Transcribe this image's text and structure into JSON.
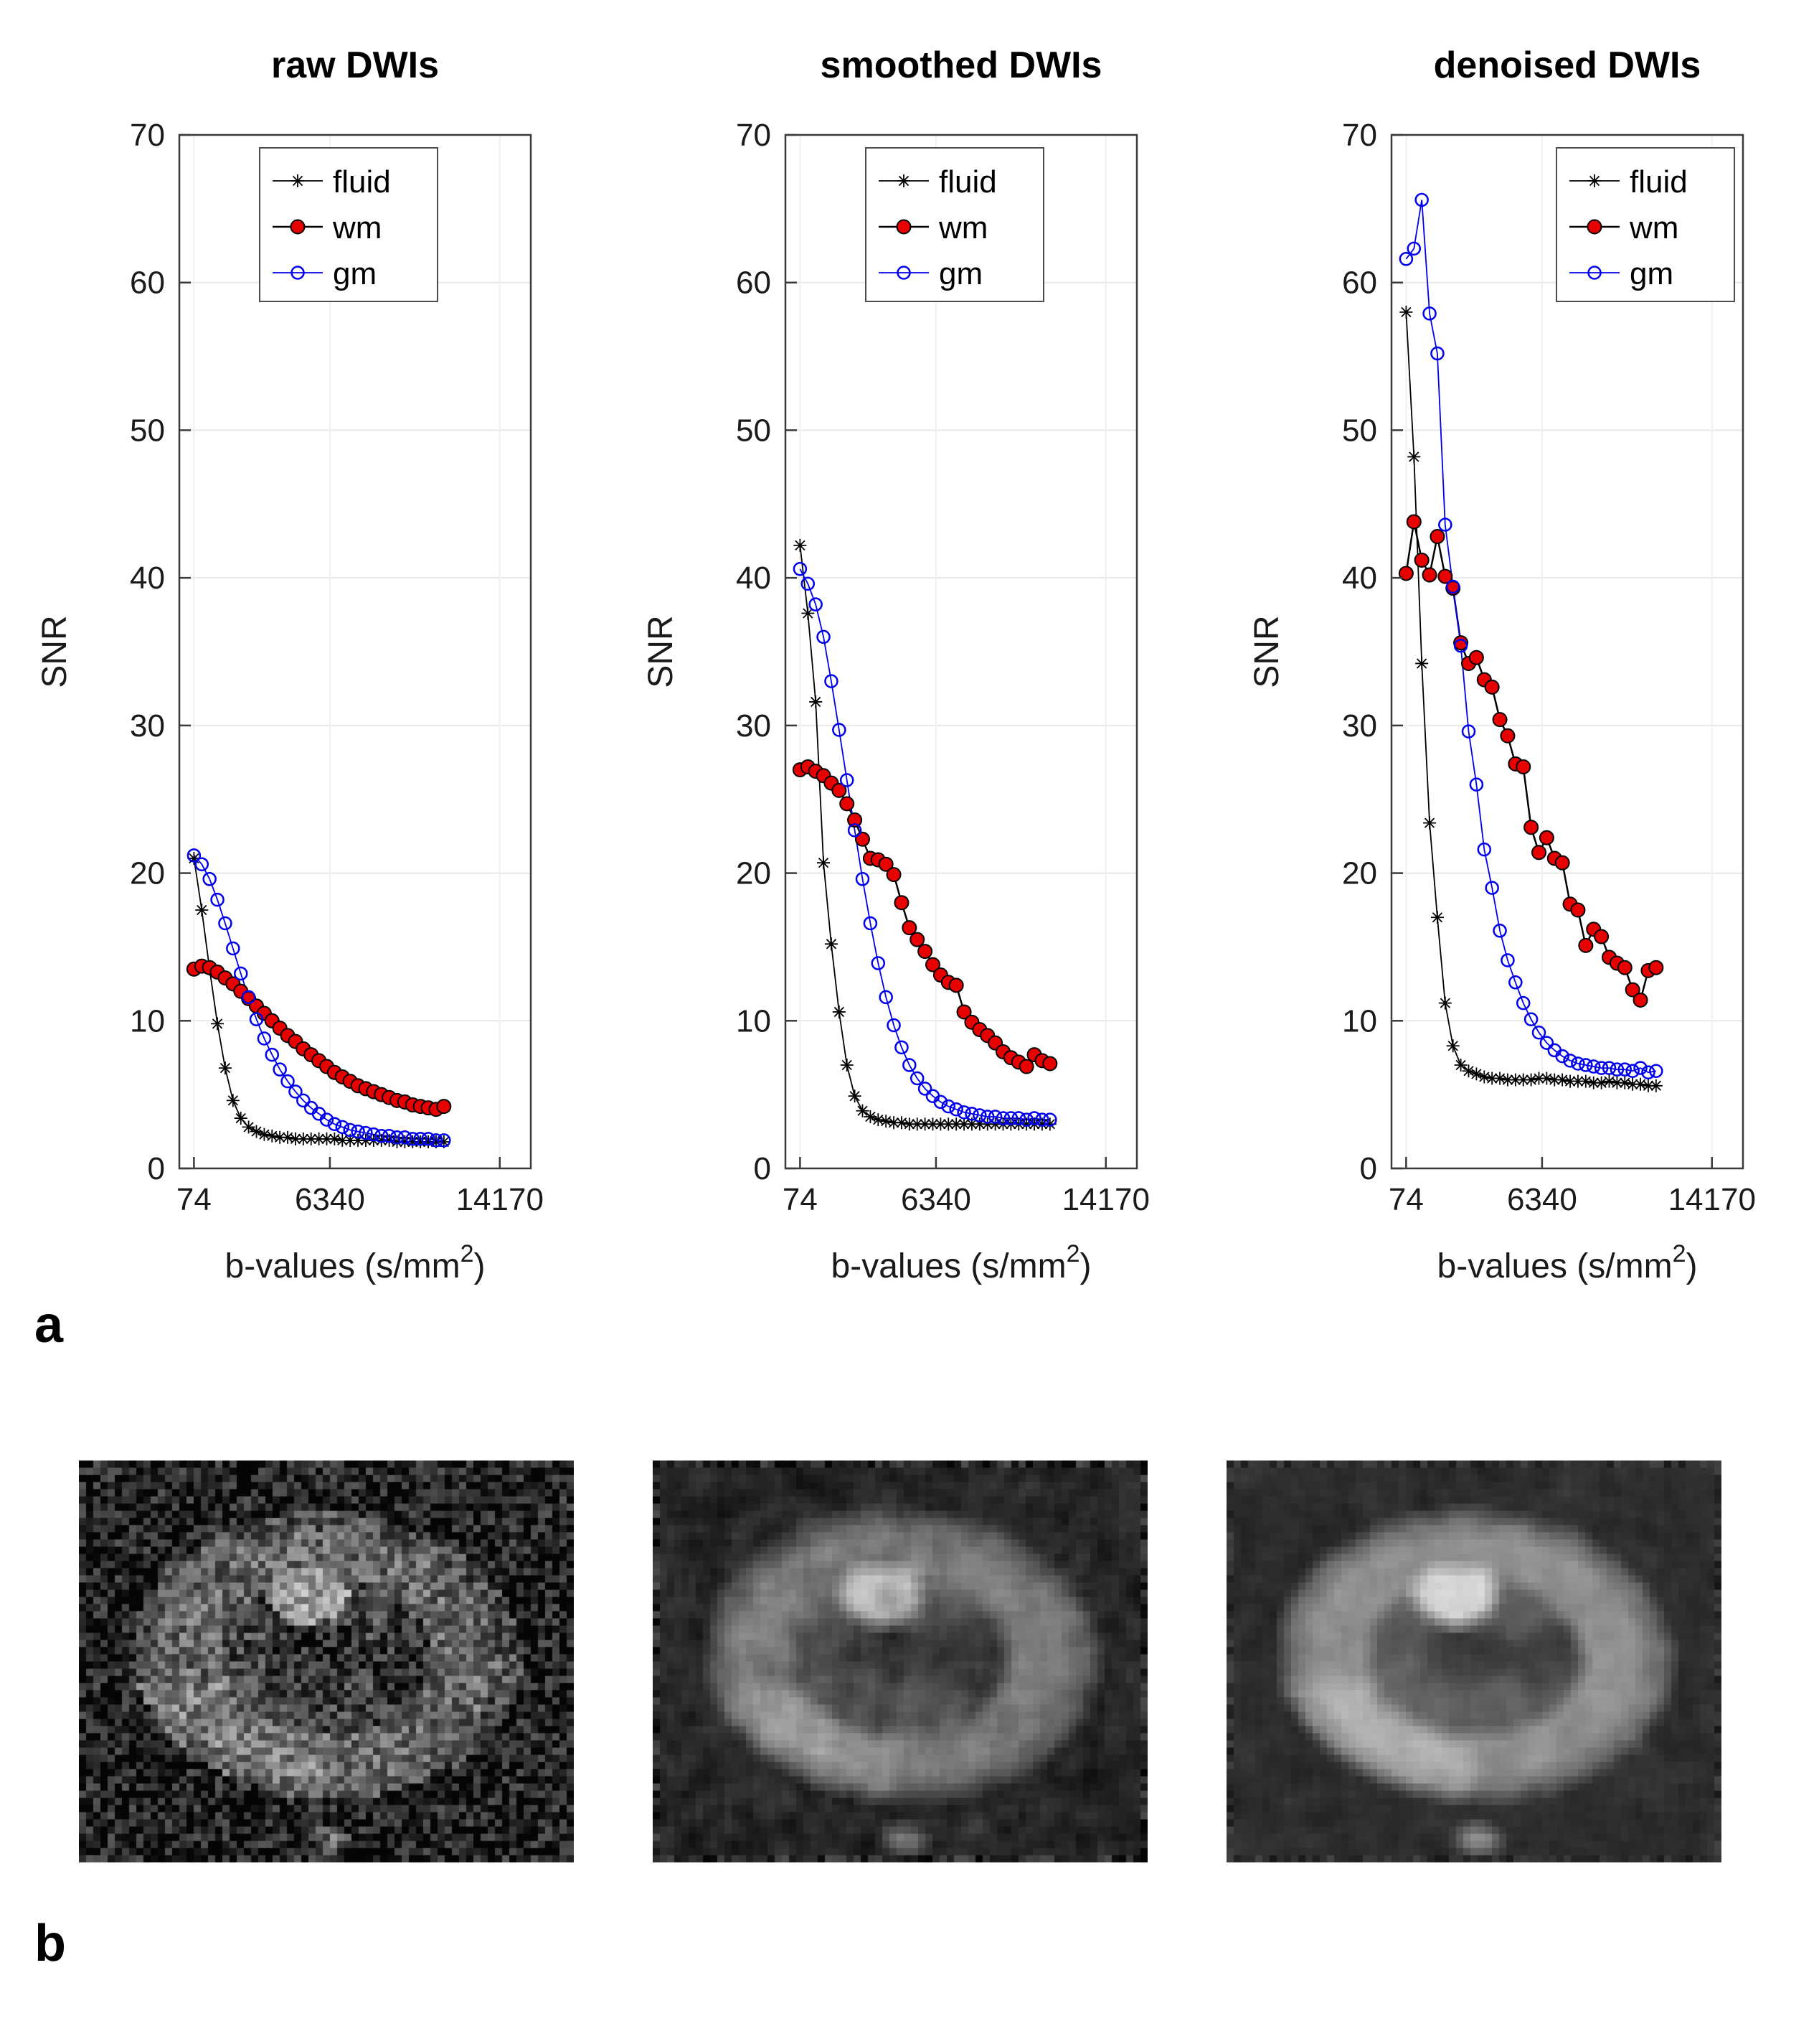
{
  "panel_labels": {
    "a": "a",
    "b": "b"
  },
  "colors": {
    "fluid": "#000000",
    "wm_line": "#000000",
    "wm_fill": "#e60000",
    "gm": "#0000ee",
    "grid": "#e8e8e8",
    "axis": "#3a3a3a"
  },
  "b_values": [
    74,
    434,
    794,
    1154,
    1514,
    1874,
    2234,
    2594,
    2954,
    3314,
    3674,
    4034,
    4394,
    4754,
    5114,
    5474,
    5834,
    6194,
    6554,
    6914,
    7274,
    7634,
    7994,
    8354,
    8714,
    9074,
    9434,
    9794,
    10154,
    10514,
    10874,
    11234,
    11594
  ],
  "chart_data": [
    {
      "type": "line",
      "title": "raw DWIs",
      "ylabel": "SNR",
      "xlabel_prefix": "b-values (s/mm",
      "xlabel_sup": "2",
      "xlabel_suffix": ")",
      "ylim": [
        0,
        70
      ],
      "yticks": [
        0,
        10,
        20,
        30,
        40,
        50,
        60,
        70
      ],
      "xlim": [
        -600,
        15600
      ],
      "xticks": [
        {
          "v": 74,
          "label": "74"
        },
        {
          "v": 6340,
          "label": "6340"
        },
        {
          "v": 14170,
          "label": "14170"
        }
      ],
      "grid": true,
      "legend_position": "upper-left",
      "series": [
        {
          "name": "fluid",
          "marker": "asterisk",
          "line_color": "#000000",
          "line_width": 1.8,
          "values": [
            21.0,
            17.5,
            13.5,
            9.8,
            6.8,
            4.6,
            3.4,
            2.8,
            2.5,
            2.3,
            2.2,
            2.1,
            2.1,
            2.0,
            2.0,
            2.0,
            2.0,
            2.0,
            2.0,
            1.9,
            1.9,
            1.9,
            1.9,
            1.9,
            1.9,
            1.9,
            1.8,
            1.8,
            1.8,
            1.8,
            1.8,
            1.8,
            1.8
          ]
        },
        {
          "name": "wm",
          "marker": "filled-circle",
          "line_color": "#000000",
          "line_width": 2.5,
          "marker_fill": "#e60000",
          "values": [
            13.5,
            13.7,
            13.6,
            13.3,
            12.9,
            12.5,
            12.0,
            11.5,
            11.0,
            10.5,
            10.0,
            9.5,
            9.0,
            8.6,
            8.1,
            7.7,
            7.3,
            6.9,
            6.5,
            6.2,
            5.9,
            5.6,
            5.4,
            5.2,
            5.0,
            4.8,
            4.6,
            4.5,
            4.3,
            4.2,
            4.1,
            4.0,
            4.2
          ]
        },
        {
          "name": "gm",
          "marker": "open-circle",
          "line_color": "#0000ee",
          "line_width": 1.8,
          "values": [
            21.2,
            20.6,
            19.6,
            18.2,
            16.6,
            14.9,
            13.2,
            11.6,
            10.1,
            8.8,
            7.7,
            6.7,
            5.9,
            5.2,
            4.6,
            4.1,
            3.7,
            3.3,
            3.0,
            2.8,
            2.6,
            2.5,
            2.4,
            2.3,
            2.2,
            2.2,
            2.1,
            2.1,
            2.0,
            2.0,
            2.0,
            1.9,
            1.9
          ]
        }
      ]
    },
    {
      "type": "line",
      "title": "smoothed DWIs",
      "ylabel": "SNR",
      "xlabel_prefix": "b-values (s/mm",
      "xlabel_sup": "2",
      "xlabel_suffix": ")",
      "ylim": [
        0,
        70
      ],
      "yticks": [
        0,
        10,
        20,
        30,
        40,
        50,
        60,
        70
      ],
      "xlim": [
        -600,
        15600
      ],
      "xticks": [
        {
          "v": 74,
          "label": "74"
        },
        {
          "v": 6340,
          "label": "6340"
        },
        {
          "v": 14170,
          "label": "14170"
        }
      ],
      "grid": true,
      "legend_position": "upper-left",
      "series": [
        {
          "name": "fluid",
          "marker": "asterisk",
          "line_color": "#000000",
          "line_width": 1.8,
          "values": [
            42.2,
            37.6,
            31.6,
            20.7,
            15.2,
            10.6,
            7.0,
            4.9,
            3.9,
            3.5,
            3.3,
            3.2,
            3.1,
            3.1,
            3.0,
            3.0,
            3.0,
            3.0,
            3.0,
            3.0,
            3.0,
            3.0,
            3.0,
            3.0,
            3.0,
            3.0,
            3.0,
            3.0,
            3.0,
            3.0,
            3.0,
            3.0,
            3.0
          ]
        },
        {
          "name": "wm",
          "marker": "filled-circle",
          "line_color": "#000000",
          "line_width": 2.5,
          "marker_fill": "#e60000",
          "values": [
            27.0,
            27.2,
            26.9,
            26.6,
            26.1,
            25.6,
            24.7,
            23.6,
            22.3,
            21.0,
            20.9,
            20.6,
            19.9,
            18.0,
            16.3,
            15.5,
            14.7,
            13.8,
            13.1,
            12.6,
            12.4,
            10.6,
            9.9,
            9.4,
            9.0,
            8.5,
            7.9,
            7.5,
            7.2,
            6.9,
            7.7,
            7.3,
            7.1
          ]
        },
        {
          "name": "gm",
          "marker": "open-circle",
          "line_color": "#0000ee",
          "line_width": 1.8,
          "values": [
            40.6,
            39.6,
            38.2,
            36.0,
            33.0,
            29.7,
            26.3,
            22.9,
            19.6,
            16.6,
            13.9,
            11.6,
            9.7,
            8.2,
            7.0,
            6.1,
            5.4,
            4.9,
            4.5,
            4.2,
            4.0,
            3.8,
            3.7,
            3.6,
            3.5,
            3.5,
            3.4,
            3.4,
            3.4,
            3.3,
            3.4,
            3.3,
            3.3
          ]
        }
      ]
    },
    {
      "type": "line",
      "title": "denoised DWIs",
      "ylabel": "SNR",
      "xlabel_prefix": "b-values (s/mm",
      "xlabel_sup": "2",
      "xlabel_suffix": ")",
      "ylim": [
        0,
        70
      ],
      "yticks": [
        0,
        10,
        20,
        30,
        40,
        50,
        60,
        70
      ],
      "xlim": [
        -600,
        15600
      ],
      "xticks": [
        {
          "v": 74,
          "label": "74"
        },
        {
          "v": 6340,
          "label": "6340"
        },
        {
          "v": 14170,
          "label": "14170"
        }
      ],
      "grid": true,
      "legend_position": "upper-right",
      "series": [
        {
          "name": "fluid",
          "marker": "asterisk",
          "line_color": "#000000",
          "line_width": 1.8,
          "values": [
            58.0,
            48.2,
            34.2,
            23.4,
            17.0,
            11.2,
            8.3,
            7.0,
            6.6,
            6.4,
            6.2,
            6.1,
            6.1,
            6.0,
            6.0,
            6.0,
            6.0,
            6.1,
            6.1,
            6.0,
            6.0,
            5.9,
            5.9,
            5.9,
            5.8,
            5.8,
            5.9,
            5.8,
            5.8,
            5.7,
            5.7,
            5.6,
            5.6
          ]
        },
        {
          "name": "wm",
          "marker": "filled-circle",
          "line_color": "#000000",
          "line_width": 2.5,
          "marker_fill": "#e60000",
          "values": [
            40.3,
            43.8,
            41.2,
            40.2,
            42.8,
            40.1,
            39.3,
            35.6,
            34.2,
            34.6,
            33.1,
            32.6,
            30.4,
            29.3,
            27.4,
            27.2,
            23.1,
            21.4,
            22.4,
            21.0,
            20.7,
            17.9,
            17.5,
            15.1,
            16.2,
            15.7,
            14.3,
            13.9,
            13.6,
            12.1,
            11.4,
            13.4,
            13.6
          ]
        },
        {
          "name": "gm",
          "marker": "open-circle",
          "line_color": "#0000ee",
          "line_width": 1.8,
          "values": [
            61.6,
            62.3,
            65.6,
            57.9,
            55.2,
            43.6,
            39.4,
            35.4,
            29.6,
            26.0,
            21.6,
            19.0,
            16.1,
            14.1,
            12.6,
            11.2,
            10.1,
            9.2,
            8.5,
            8.0,
            7.6,
            7.3,
            7.1,
            7.0,
            6.9,
            6.8,
            6.8,
            6.7,
            6.7,
            6.6,
            6.8,
            6.5,
            6.6
          ]
        }
      ]
    }
  ],
  "images": [
    {
      "id": "dwi-raw"
    },
    {
      "id": "dwi-smoothed"
    },
    {
      "id": "dwi-denoised"
    }
  ]
}
